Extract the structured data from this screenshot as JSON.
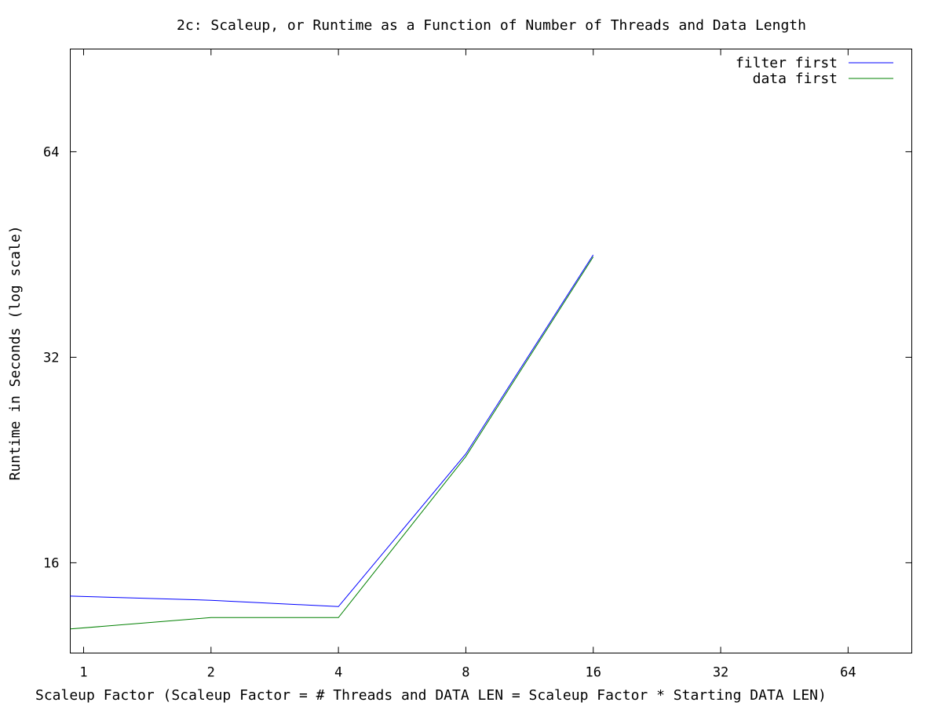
{
  "chart_data": {
    "type": "line",
    "title": "2c: Scaleup, or Runtime as a Function of Number of Threads and Data Length",
    "xlabel": "Scaleup Factor (Scaleup Factor = # Threads and DATA LEN = Scaleup Factor * Starting DATA LEN)",
    "ylabel": "Runtime in Seconds (log scale)",
    "x_scale": "log2",
    "y_scale": "log2",
    "xlim": [
      0.93,
      90.5
    ],
    "ylim": [
      11.8,
      90.5
    ],
    "x_ticks": [
      1,
      2,
      4,
      8,
      16,
      32,
      64
    ],
    "x_tick_labels": [
      "1",
      "2",
      "4",
      "8",
      "16",
      "32",
      "64"
    ],
    "y_ticks": [
      16,
      32,
      64
    ],
    "y_tick_labels": [
      "16",
      "32",
      "64"
    ],
    "legend_position": "top-right",
    "grid": false,
    "series": [
      {
        "name": "filter first",
        "color": "#0000ff",
        "x": [
          0.93,
          2,
          4,
          8,
          16
        ],
        "y": [
          14.3,
          14.1,
          13.8,
          23.1,
          45.2
        ]
      },
      {
        "name": "data first",
        "color": "#008000",
        "x": [
          0.93,
          2,
          4,
          8,
          16
        ],
        "y": [
          12.8,
          13.3,
          13.3,
          22.9,
          44.9
        ]
      }
    ]
  }
}
